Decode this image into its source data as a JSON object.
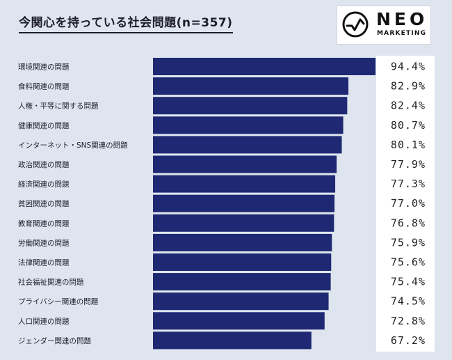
{
  "title": "今関心を持っている社会問題(n=357)",
  "logo": {
    "word": "NEO",
    "sub": "MARKETING",
    "icon": "neo-check-circle-icon"
  },
  "colors": {
    "bar": "#1e2873",
    "background": "#dfe5ee",
    "value_panel": "#ffffff"
  },
  "chart_data": {
    "type": "bar",
    "orientation": "horizontal",
    "title": "今関心を持っている社会問題(n=357)",
    "categories": [
      "環境関連の問題",
      "食料関連の問題",
      "人権・平等に関する問題",
      "健康関連の問題",
      "インターネット・SNS関連の問題",
      "政治関連の問題",
      "経済関連の問題",
      "貧困関連の問題",
      "教育関連の問題",
      "労働関連の問題",
      "法律関連の問題",
      "社会福祉関連の問題",
      "プライバシー関連の問題",
      "人口関連の問題",
      "ジェンダー関連の問題"
    ],
    "values": [
      94.4,
      82.9,
      82.4,
      80.7,
      80.1,
      77.9,
      77.3,
      77.0,
      76.8,
      75.9,
      75.6,
      75.4,
      74.5,
      72.8,
      67.2
    ],
    "value_labels": [
      "94.4%",
      "82.9%",
      "82.4%",
      "80.7%",
      "80.1%",
      "77.9%",
      "77.3%",
      "77.0%",
      "76.8%",
      "75.9%",
      "75.6%",
      "75.4%",
      "74.5%",
      "72.8%",
      "67.2%"
    ],
    "unit": "%",
    "grid": false,
    "legend": "none"
  }
}
